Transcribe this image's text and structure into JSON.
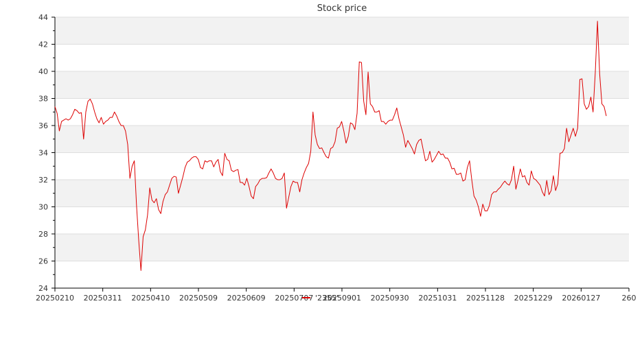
{
  "chart_data": {
    "type": "line",
    "title": "Stock price",
    "xlabel": "",
    "ylabel": "",
    "ylim": [
      24,
      44
    ],
    "yticks": [
      "24",
      "26",
      "28",
      "30",
      "32",
      "34",
      "36",
      "38",
      "40",
      "42",
      "44"
    ],
    "xticks": [
      "20250210",
      "20250311",
      "20250410",
      "20250509",
      "20250609",
      "20250707",
      "20250901",
      "20250930",
      "20251031",
      "20251128",
      "20251229",
      "20260127",
      "260"
    ],
    "grid": "horizontal bands",
    "legend_position": "bottom-center",
    "series": [
      {
        "name": "'2355'",
        "color": "#dd0000",
        "values": [
          37.4,
          36.9,
          35.6,
          36.3,
          36.4,
          36.5,
          36.4,
          36.5,
          36.8,
          37.2,
          37.1,
          36.9,
          36.95,
          35.0,
          37.0,
          37.8,
          37.95,
          37.6,
          37.0,
          36.5,
          36.2,
          36.6,
          36.1,
          36.3,
          36.4,
          36.6,
          36.6,
          37.0,
          36.7,
          36.3,
          36.0,
          36.0,
          35.6,
          34.6,
          32.1,
          33.0,
          33.4,
          30.1,
          27.5,
          25.3,
          27.8,
          28.3,
          29.4,
          31.4,
          30.5,
          30.3,
          30.6,
          29.8,
          29.5,
          30.4,
          30.9,
          31.1,
          31.6,
          32.1,
          32.25,
          32.2,
          31.0,
          31.6,
          32.2,
          32.9,
          33.3,
          33.4,
          33.6,
          33.7,
          33.7,
          33.5,
          32.9,
          32.8,
          33.4,
          33.3,
          33.4,
          33.4,
          32.95,
          33.3,
          33.5,
          32.6,
          32.3,
          33.95,
          33.5,
          33.4,
          32.7,
          32.6,
          32.7,
          32.75,
          31.8,
          31.8,
          31.6,
          32.1,
          31.5,
          30.8,
          30.6,
          31.5,
          31.7,
          32.0,
          32.1,
          32.1,
          32.15,
          32.5,
          32.8,
          32.5,
          32.1,
          32.0,
          32.0,
          32.1,
          32.5,
          29.9,
          30.7,
          31.5,
          31.9,
          31.8,
          31.8,
          31.1,
          32.0,
          32.5,
          32.9,
          33.2,
          34.1,
          37.0,
          35.3,
          34.6,
          34.3,
          34.35,
          34.0,
          33.7,
          33.6,
          34.3,
          34.4,
          34.8,
          35.8,
          35.9,
          36.3,
          35.6,
          34.7,
          35.2,
          36.2,
          36.1,
          35.7,
          36.9,
          40.7,
          40.65,
          37.8,
          36.8,
          39.95,
          37.6,
          37.4,
          37.0,
          37.0,
          37.1,
          36.3,
          36.3,
          36.1,
          36.3,
          36.4,
          36.4,
          36.8,
          37.3,
          36.5,
          35.9,
          35.3,
          34.4,
          34.9,
          34.6,
          34.3,
          33.9,
          34.6,
          34.9,
          35.0,
          34.2,
          33.4,
          33.5,
          34.1,
          33.3,
          33.5,
          33.8,
          34.1,
          33.85,
          33.9,
          33.6,
          33.6,
          33.3,
          32.8,
          32.85,
          32.4,
          32.4,
          32.5,
          31.9,
          32.0,
          32.9,
          33.4,
          32.0,
          30.8,
          30.5,
          30.0,
          29.3,
          30.2,
          29.7,
          29.7,
          30.1,
          30.9,
          31.1,
          31.1,
          31.3,
          31.45,
          31.7,
          31.9,
          31.7,
          31.6,
          32.0,
          33.0,
          31.3,
          32.0,
          32.8,
          32.2,
          32.3,
          31.8,
          31.6,
          32.65,
          32.1,
          32.0,
          31.8,
          31.6,
          31.1,
          30.8,
          31.95,
          30.9,
          31.2,
          32.3,
          31.2,
          31.7,
          33.95,
          34.0,
          34.3,
          35.8,
          34.8,
          35.3,
          35.8,
          35.2,
          35.8,
          39.4,
          39.45,
          37.6,
          37.2,
          37.4,
          38.1,
          37.0,
          39.9,
          43.7,
          39.8,
          37.6,
          37.4,
          36.7
        ]
      }
    ]
  }
}
